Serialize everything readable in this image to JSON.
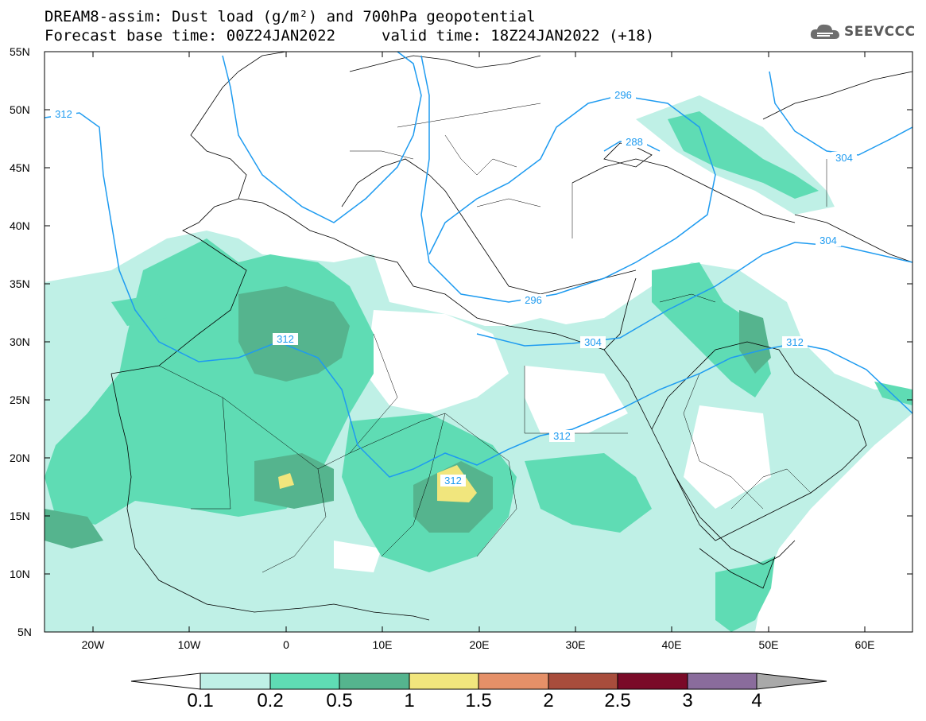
{
  "header": {
    "title_line1": "DREAM8-assim: Dust load (g/m²) and 700hPa geopotential",
    "forecast_base": "Forecast base time: 00Z24JAN2022",
    "valid_time": "valid time: 18Z24JAN2022 (+18)",
    "logo_text": "SEEVCCC"
  },
  "map": {
    "lat_labels": [
      "55N",
      "50N",
      "45N",
      "40N",
      "35N",
      "30N",
      "25N",
      "20N",
      "15N",
      "10N",
      "5N"
    ],
    "lon_labels": [
      "20W",
      "10W",
      "0",
      "10E",
      "20E",
      "30E",
      "40E",
      "50E",
      "60E"
    ],
    "contour_labels": [
      "312",
      "296",
      "288",
      "304",
      "304",
      "296",
      "312",
      "312",
      "304",
      "312",
      "312"
    ]
  },
  "colorbar": {
    "labels": [
      "0.1",
      "0.2",
      "0.5",
      "1",
      "1.5",
      "2",
      "2.5",
      "3",
      "4"
    ],
    "colors": [
      "#bff0e6",
      "#5fdcb4",
      "#55b48e",
      "#f1e67d",
      "#e59068",
      "#a84d3c",
      "#7a0a28",
      "#8a6c9c",
      "#a9a9a9"
    ]
  },
  "colors": {
    "contour": "#1e9bf0",
    "dust_low": "#bff0e6",
    "dust_mid": "#5fdcb4",
    "dust_high": "#55b48e",
    "dust_peak": "#f1e67d"
  }
}
